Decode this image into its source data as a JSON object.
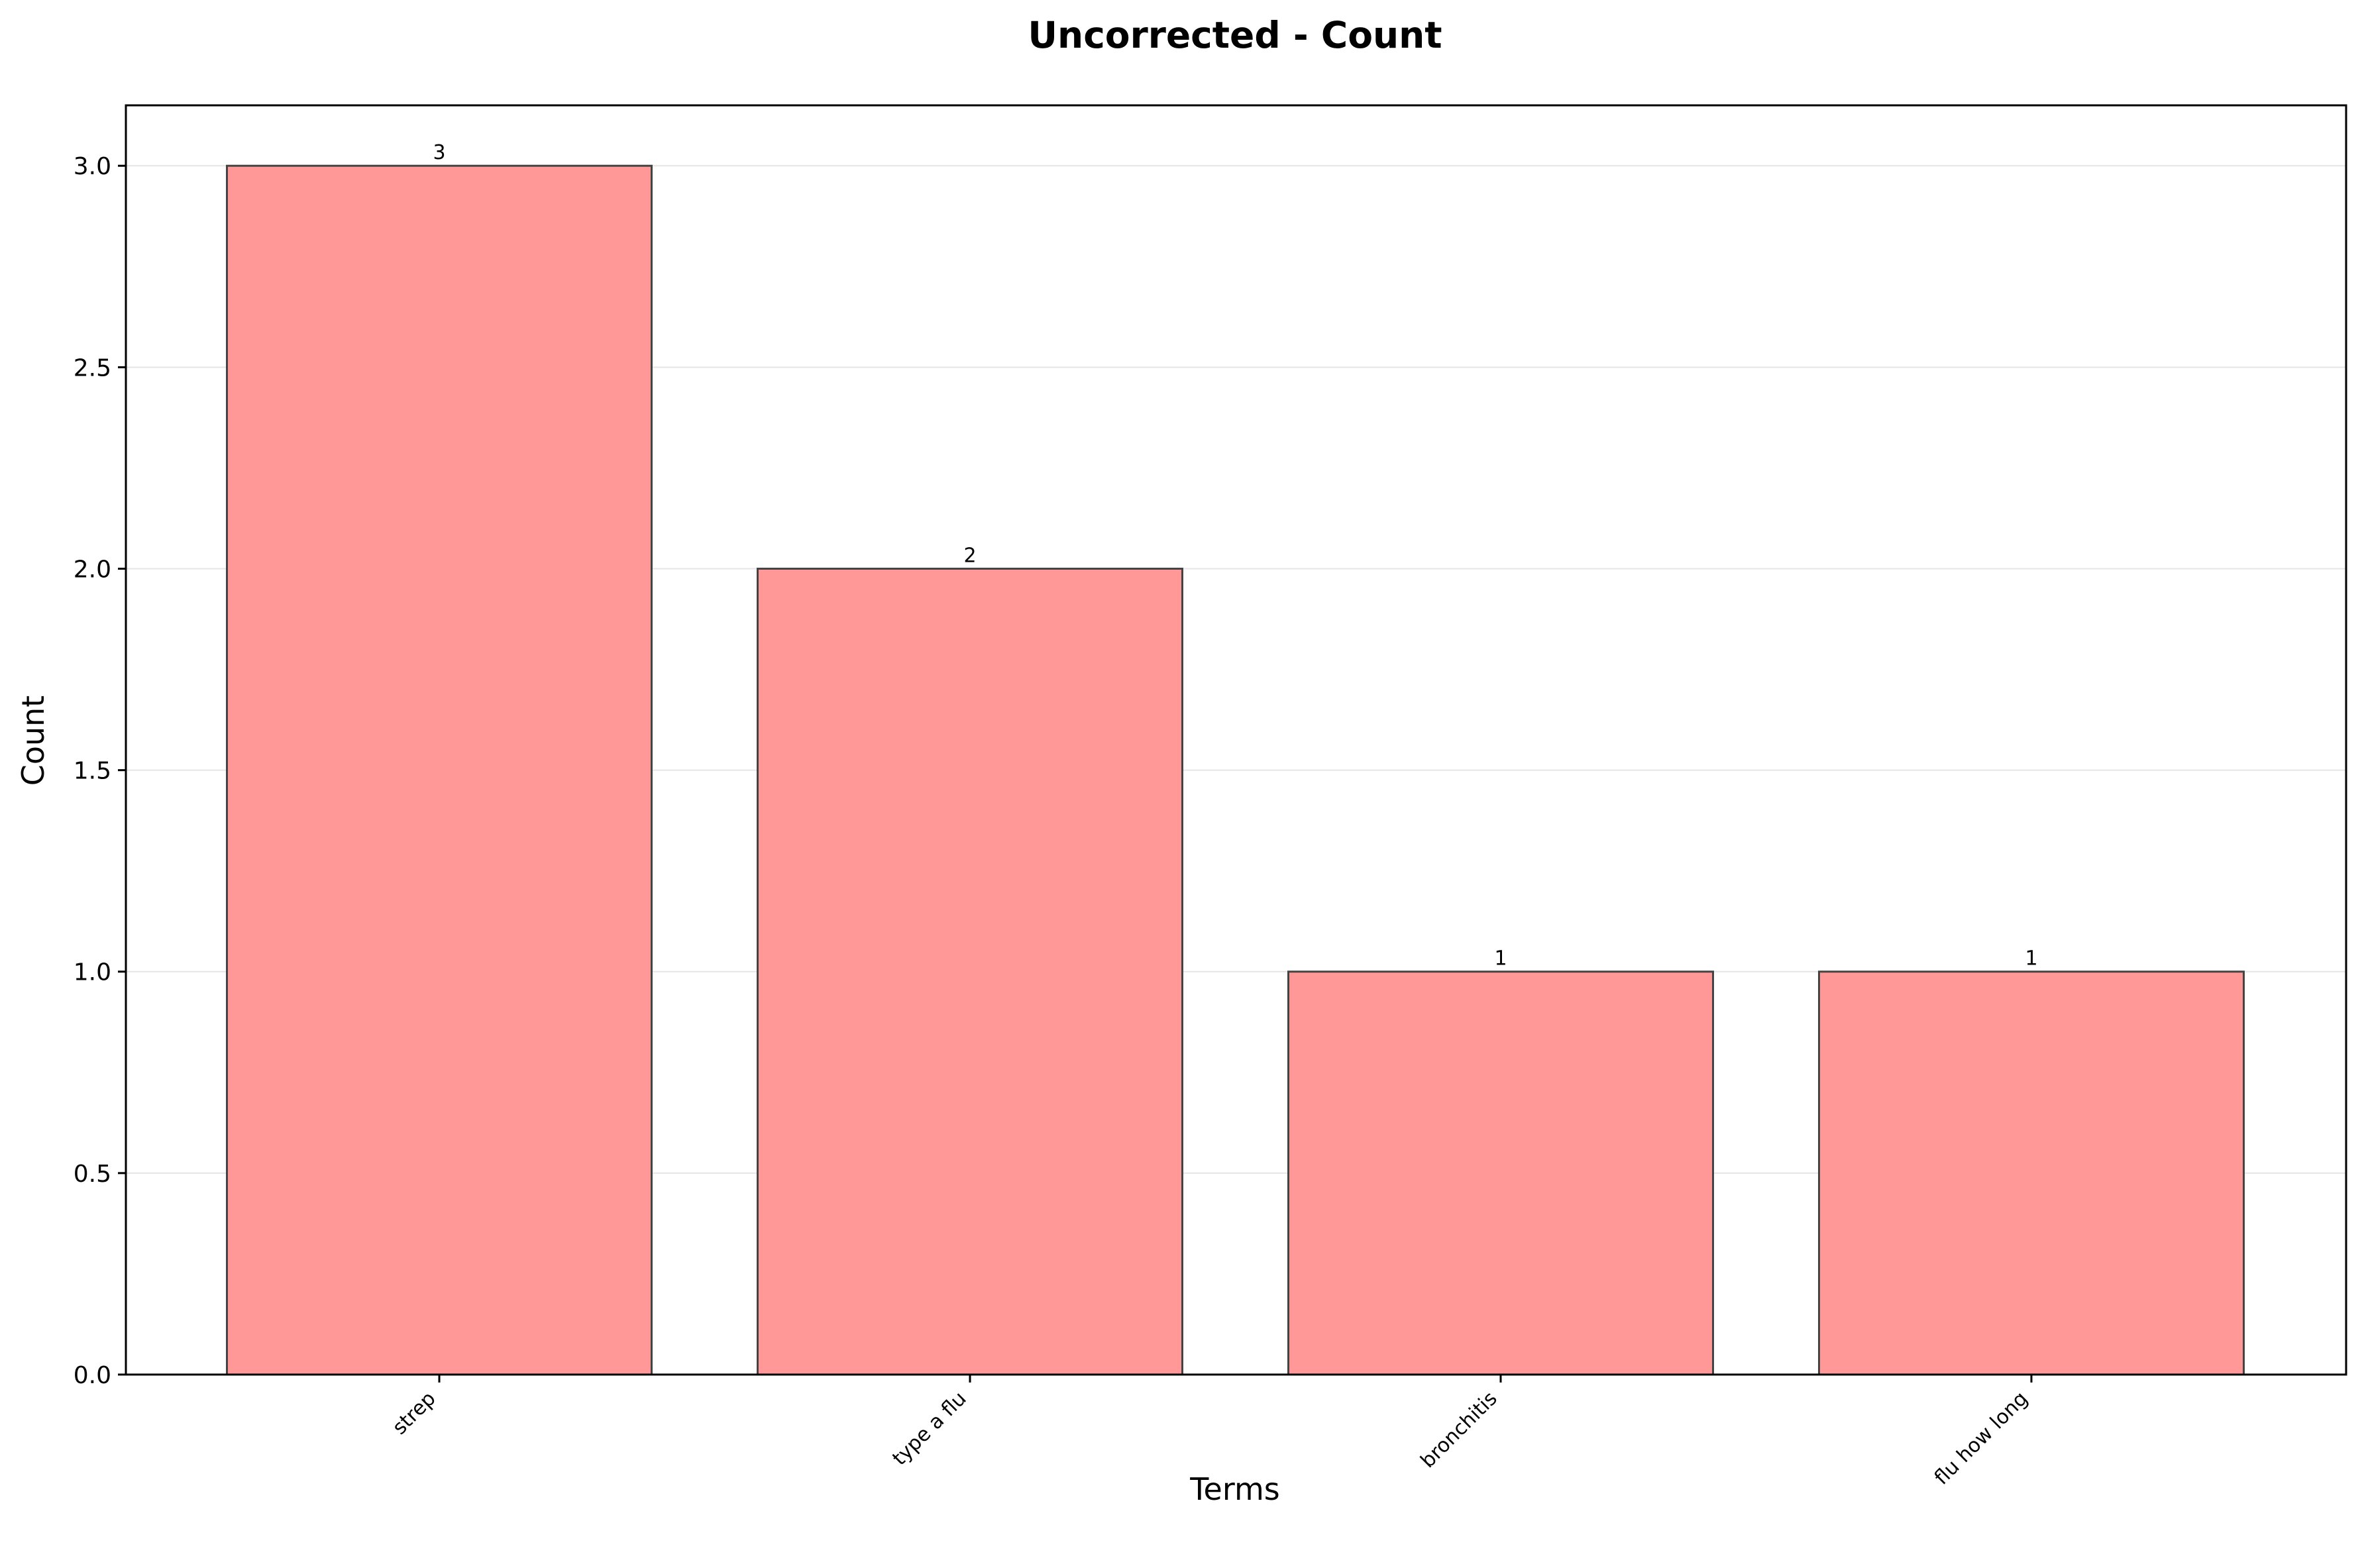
{
  "chart_data": {
    "type": "bar",
    "title": "Uncorrected - Count",
    "xlabel": "Terms",
    "ylabel": "Count",
    "categories": [
      "strep",
      "type a flu",
      "bronchitis",
      "flu how long"
    ],
    "values": [
      3,
      2,
      1,
      1
    ],
    "value_labels": [
      "3",
      "2",
      "1",
      "1"
    ],
    "ylim": [
      0,
      3.15
    ],
    "yticks": [
      0.0,
      0.5,
      1.0,
      1.5,
      2.0,
      2.5,
      3.0
    ],
    "ytick_labels": [
      "0.0",
      "0.5",
      "1.0",
      "1.5",
      "2.0",
      "2.5",
      "3.0"
    ],
    "grid": "horizontal",
    "legend": "none",
    "colors": {
      "bar_fill": "#ff9896",
      "bar_edge": "#444444",
      "grid": "#e5e5e5",
      "axis": "#000000"
    }
  }
}
